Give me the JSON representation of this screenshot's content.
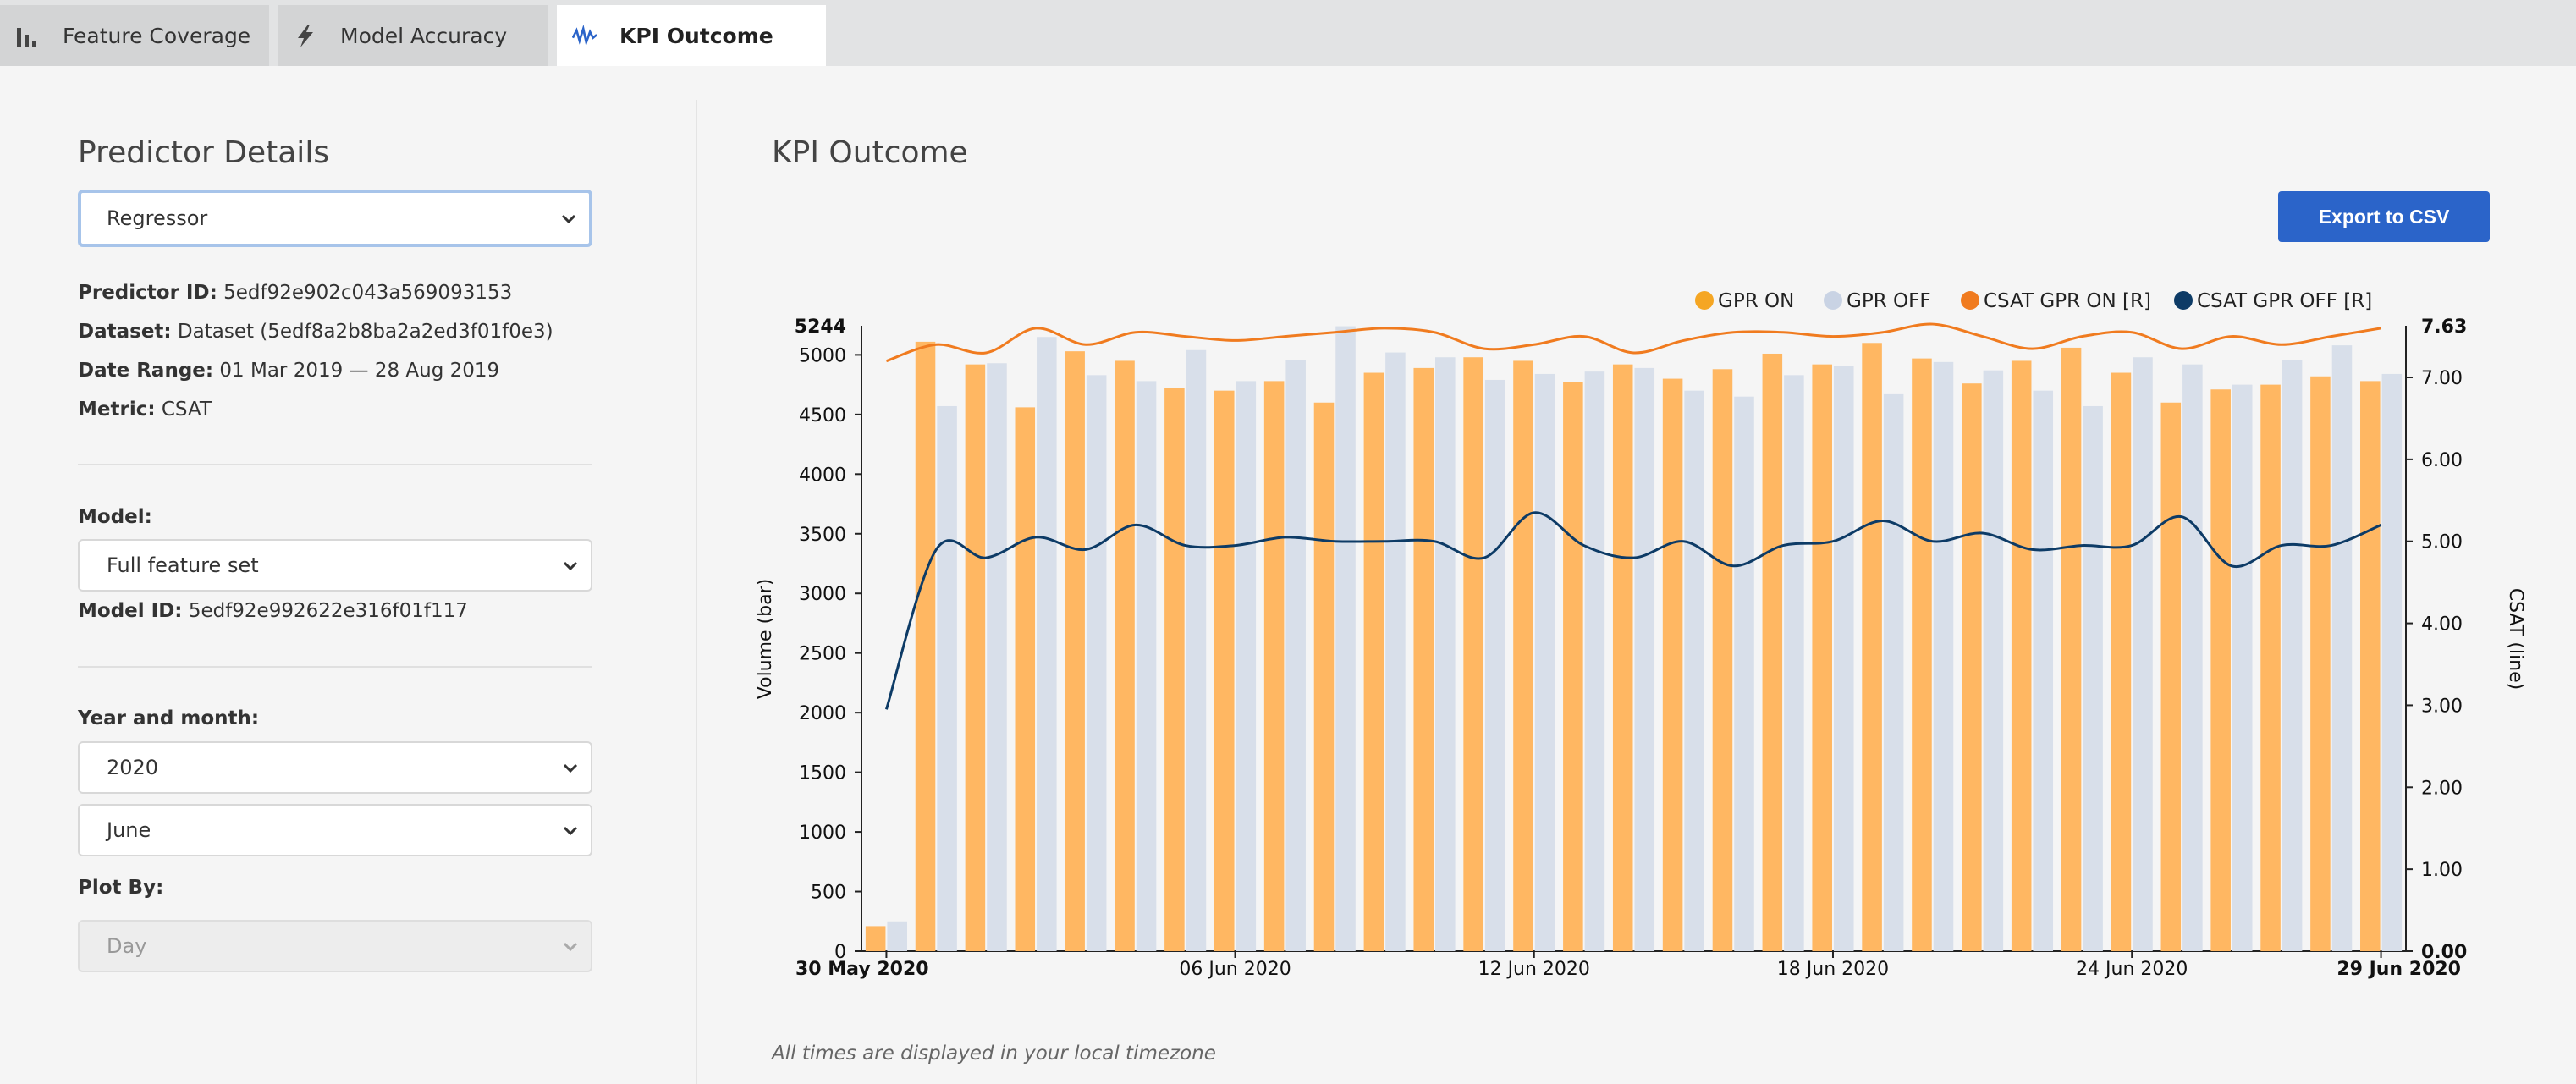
{
  "tabs": [
    {
      "label": "Feature Coverage",
      "icon": "bar-chart-icon",
      "active": false
    },
    {
      "label": "Model Accuracy",
      "icon": "lightning-icon",
      "active": false
    },
    {
      "label": "KPI Outcome",
      "icon": "wave-icon",
      "active": true
    }
  ],
  "left": {
    "title": "Predictor Details",
    "predictor_type": "Regressor",
    "predictor_id_label": "Predictor ID:",
    "predictor_id": "5edf92e902c043a569093153",
    "dataset_label": "Dataset:",
    "dataset": "Dataset (5edf8a2b8ba2a2ed3f01f0e3)",
    "date_range_label": "Date Range:",
    "date_range": "01 Mar 2019 — 28 Aug 2019",
    "metric_label": "Metric:",
    "metric": "CSAT",
    "model_label": "Model:",
    "model": "Full feature set",
    "model_id_label": "Model ID:",
    "model_id": "5edf92e992622e316f01f117",
    "year_month_label": "Year and month:",
    "year": "2020",
    "month": "June",
    "plot_by_label": "Plot By:",
    "plot_by": "Day"
  },
  "right": {
    "title": "KPI Outcome",
    "export_label": "Export to CSV",
    "footnote": "All times are displayed in your local timezone"
  },
  "colors": {
    "gpr_on_bar": "#ffb762",
    "gpr_off_bar": "#d8dfea",
    "gpr_on_legend": "#f5a623",
    "gpr_off_legend": "#c9d3e4",
    "csat_on_line": "#f07b1f",
    "csat_off_line": "#0d3b66",
    "export_button": "#2b64c9"
  },
  "chart_data": {
    "type": "bar",
    "legend": [
      "GPR ON",
      "GPR OFF",
      "CSAT GPR ON [R]",
      "CSAT GPR OFF [R]"
    ],
    "legend_position": "top-right",
    "ylabel_left": "Volume (bar)",
    "ylabel_right": "CSAT (line)",
    "y_left_range": [
      0,
      5244
    ],
    "y_left_ticks": [
      "0",
      "500",
      "1000",
      "1500",
      "2000",
      "2500",
      "3000",
      "3500",
      "4000",
      "4500",
      "5000"
    ],
    "y_left_max_label": "5244",
    "y_right_range": [
      0,
      7.63
    ],
    "y_right_ticks": [
      "0.00",
      "1.00",
      "2.00",
      "3.00",
      "4.00",
      "5.00",
      "6.00",
      "7.00"
    ],
    "y_right_max_label": "7.63",
    "x_range": [
      "30 May 2020",
      "29 Jun 2020"
    ],
    "x_ticks": [
      "30 May 2020",
      "06 Jun 2020",
      "12 Jun 2020",
      "18 Jun 2020",
      "24 Jun 2020",
      "29 Jun 2020"
    ],
    "grid": false,
    "series": [
      {
        "name": "GPR ON",
        "kind": "bar",
        "values": [
          210,
          5110,
          4920,
          4560,
          5030,
          4950,
          4720,
          4700,
          4780,
          4600,
          4850,
          4890,
          4980,
          4950,
          4770,
          4920,
          4800,
          4880,
          5010,
          4920,
          5100,
          4970,
          4760,
          4950,
          5060,
          4850,
          4600,
          4710,
          4750,
          4820,
          4780
        ]
      },
      {
        "name": "GPR OFF",
        "kind": "bar",
        "values": [
          250,
          4570,
          4930,
          5150,
          4830,
          4780,
          5040,
          4780,
          4960,
          5240,
          5020,
          4980,
          4790,
          4840,
          4860,
          4890,
          4700,
          4650,
          4830,
          4910,
          4670,
          4940,
          4870,
          4700,
          4570,
          4980,
          4920,
          4750,
          4960,
          5080,
          4840
        ]
      },
      {
        "name": "CSAT GPR ON [R]",
        "kind": "line",
        "values": [
          7.2,
          7.4,
          7.3,
          7.6,
          7.4,
          7.55,
          7.5,
          7.45,
          7.5,
          7.55,
          7.6,
          7.55,
          7.35,
          7.4,
          7.5,
          7.3,
          7.45,
          7.55,
          7.55,
          7.5,
          7.55,
          7.65,
          7.5,
          7.35,
          7.5,
          7.55,
          7.35,
          7.5,
          7.4,
          7.5,
          7.6
        ]
      },
      {
        "name": "CSAT GPR OFF [R]",
        "kind": "line",
        "values": [
          2.95,
          4.9,
          4.8,
          5.05,
          4.9,
          5.2,
          4.95,
          4.95,
          5.05,
          5.0,
          5.0,
          5.0,
          4.8,
          5.35,
          4.95,
          4.8,
          5.0,
          4.7,
          4.95,
          5.0,
          5.25,
          5.0,
          5.1,
          4.9,
          4.95,
          4.95,
          5.3,
          4.7,
          4.95,
          4.95,
          5.2
        ]
      }
    ]
  }
}
